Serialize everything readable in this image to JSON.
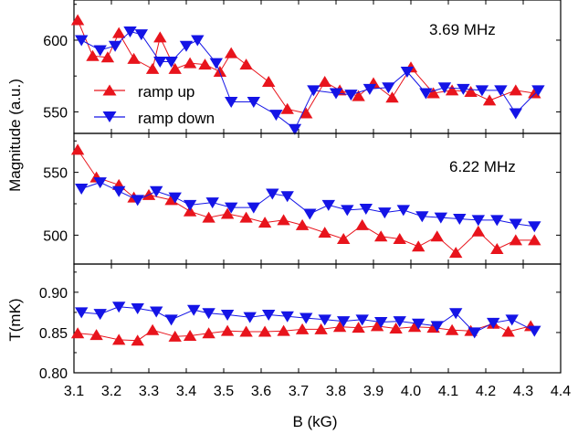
{
  "figure": {
    "ylabel_shared": "Magnitude (a.u.)",
    "xlabel": "B (kG)"
  },
  "colors": {
    "ramp_up": "#e8141c",
    "ramp_down": "#1414e6"
  },
  "chart_data": [
    {
      "type": "line",
      "annotation": "3.69 MHz",
      "legend": {
        "placement": "center-left",
        "entries": [
          "ramp up",
          "ramp down"
        ]
      },
      "xlim": [
        3.1,
        4.4
      ],
      "ylim": [
        535,
        628
      ],
      "yticks": [
        550,
        600
      ],
      "series": [
        {
          "name": "ramp up",
          "marker": "triangle-up",
          "x": [
            3.11,
            3.15,
            3.19,
            3.22,
            3.26,
            3.31,
            3.33,
            3.37,
            3.41,
            3.45,
            3.49,
            3.52,
            3.56,
            3.62,
            3.67,
            3.72,
            3.77,
            3.81,
            3.86,
            3.9,
            3.95,
            4.0,
            4.06,
            4.11,
            4.16,
            4.21,
            4.28,
            4.33
          ],
          "y": [
            614,
            589,
            588,
            605,
            587,
            580,
            602,
            580,
            584,
            583,
            578,
            591,
            583,
            571,
            552,
            549,
            571,
            565,
            561,
            570,
            560,
            581,
            563,
            565,
            564,
            558,
            565,
            563
          ]
        },
        {
          "name": "ramp down",
          "marker": "triangle-down",
          "x": [
            3.12,
            3.17,
            3.21,
            3.25,
            3.28,
            3.33,
            3.36,
            3.4,
            3.43,
            3.48,
            3.52,
            3.58,
            3.64,
            3.69,
            3.74,
            3.8,
            3.84,
            3.89,
            3.94,
            3.99,
            4.04,
            4.09,
            4.14,
            4.19,
            4.24,
            4.28,
            4.34
          ],
          "y": [
            600,
            593,
            596,
            606,
            604,
            585,
            585,
            596,
            600,
            584,
            557,
            557,
            548,
            538,
            565,
            563,
            562,
            566,
            567,
            578,
            563,
            567,
            566,
            565,
            565,
            549,
            565
          ]
        }
      ]
    },
    {
      "type": "line",
      "annotation": "6.22 MHz",
      "xlim": [
        3.1,
        4.4
      ],
      "ylim": [
        477,
        581
      ],
      "yticks": [
        500,
        550
      ],
      "series": [
        {
          "name": "ramp up",
          "marker": "triangle-up",
          "x": [
            3.11,
            3.16,
            3.22,
            3.26,
            3.3,
            3.36,
            3.41,
            3.46,
            3.51,
            3.56,
            3.61,
            3.66,
            3.71,
            3.77,
            3.82,
            3.87,
            3.92,
            3.97,
            4.02,
            4.07,
            4.12,
            4.18,
            4.23,
            4.28,
            4.33
          ],
          "y": [
            568,
            546,
            540,
            530,
            532,
            528,
            519,
            514,
            517,
            514,
            510,
            512,
            508,
            502,
            497,
            508,
            499,
            497,
            491,
            499,
            486,
            503,
            489,
            496,
            496
          ]
        },
        {
          "name": "ramp down",
          "marker": "triangle-down",
          "x": [
            3.12,
            3.17,
            3.22,
            3.27,
            3.32,
            3.37,
            3.41,
            3.47,
            3.52,
            3.58,
            3.63,
            3.67,
            3.73,
            3.78,
            3.83,
            3.88,
            3.93,
            3.98,
            4.03,
            4.08,
            4.13,
            4.18,
            4.23,
            4.28,
            4.33
          ],
          "y": [
            537,
            542,
            535,
            528,
            535,
            530,
            524,
            526,
            522,
            522,
            533,
            531,
            517,
            524,
            520,
            521,
            518,
            520,
            515,
            514,
            513,
            512,
            512,
            509,
            507
          ]
        }
      ]
    },
    {
      "type": "line",
      "xlim": [
        3.1,
        4.4
      ],
      "ylim": [
        0.8,
        0.935
      ],
      "yticks": [
        0.8,
        0.85,
        0.9
      ],
      "ytick_labels": [
        "0.80",
        "0.85",
        "0.90"
      ],
      "xticks": [
        3.1,
        3.2,
        3.3,
        3.4,
        3.5,
        3.6,
        3.7,
        3.8,
        3.9,
        4.0,
        4.1,
        4.2,
        4.3,
        4.4
      ],
      "xtick_labels": [
        "3.1",
        "3.2",
        "3.3",
        "3.4",
        "3.5",
        "3.6",
        "3.7",
        "3.8",
        "3.9",
        "4.0",
        "4.1",
        "4.2",
        "4.3",
        "4.4"
      ],
      "ylabel": "T(mK)",
      "series": [
        {
          "name": "ramp up",
          "marker": "triangle-up",
          "x": [
            3.11,
            3.16,
            3.22,
            3.27,
            3.31,
            3.37,
            3.41,
            3.46,
            3.51,
            3.56,
            3.61,
            3.66,
            3.71,
            3.76,
            3.81,
            3.86,
            3.91,
            3.96,
            4.01,
            4.06,
            4.11,
            4.16,
            4.22,
            4.26,
            4.32
          ],
          "y": [
            0.849,
            0.847,
            0.841,
            0.84,
            0.853,
            0.845,
            0.846,
            0.849,
            0.852,
            0.851,
            0.851,
            0.852,
            0.854,
            0.854,
            0.857,
            0.856,
            0.858,
            0.855,
            0.857,
            0.856,
            0.853,
            0.852,
            0.861,
            0.851,
            0.858
          ]
        },
        {
          "name": "ramp down",
          "marker": "triangle-down",
          "x": [
            3.12,
            3.17,
            3.22,
            3.27,
            3.32,
            3.36,
            3.42,
            3.46,
            3.51,
            3.57,
            3.62,
            3.67,
            3.72,
            3.77,
            3.82,
            3.87,
            3.92,
            3.97,
            4.02,
            4.07,
            4.12,
            4.17,
            4.22,
            4.27,
            4.33
          ],
          "y": [
            0.875,
            0.873,
            0.882,
            0.88,
            0.876,
            0.866,
            0.878,
            0.874,
            0.872,
            0.869,
            0.872,
            0.87,
            0.868,
            0.866,
            0.864,
            0.866,
            0.863,
            0.864,
            0.861,
            0.858,
            0.874,
            0.85,
            0.862,
            0.866,
            0.852
          ]
        }
      ]
    }
  ]
}
